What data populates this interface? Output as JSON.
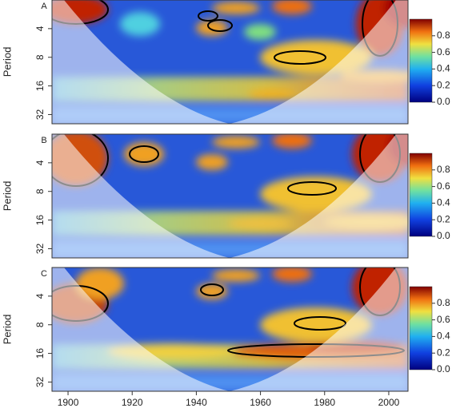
{
  "chart_data": [
    {
      "type": "heatmap",
      "label": "A",
      "y_label": "Period",
      "xlim": [
        1895,
        2006
      ],
      "ylim": [
        2,
        40
      ],
      "yticks": [
        4,
        8,
        16,
        32
      ],
      "log_y": true,
      "y_reversed": true,
      "colorbar": {
        "lim": [
          0,
          1
        ],
        "ticks": [
          {
            "value": 0,
            "label": "0.0"
          },
          {
            "value": 0.2,
            "label": "0.2"
          },
          {
            "value": 0.4,
            "label": "0.4"
          },
          {
            "value": 0.6,
            "label": "0.6"
          },
          {
            "value": 0.8,
            "label": "0.8"
          }
        ]
      }
    },
    {
      "type": "heatmap",
      "label": "B",
      "y_label": "Period",
      "xlim": [
        1895,
        2006
      ],
      "ylim": [
        2,
        40
      ],
      "yticks": [
        4,
        8,
        16,
        32
      ],
      "log_y": true,
      "y_reversed": true,
      "colorbar": {
        "lim": [
          0,
          1
        ],
        "ticks": [
          {
            "value": 0,
            "label": "0.0"
          },
          {
            "value": 0.2,
            "label": "0.2"
          },
          {
            "value": 0.4,
            "label": "0.4"
          },
          {
            "value": 0.6,
            "label": "0.6"
          },
          {
            "value": 0.8,
            "label": "0.8"
          }
        ]
      }
    },
    {
      "type": "heatmap",
      "label": "C",
      "y_label": "Period",
      "xlim": [
        1895,
        2006
      ],
      "ylim": [
        2,
        40
      ],
      "yticks": [
        4,
        8,
        16,
        32
      ],
      "log_y": true,
      "y_reversed": true,
      "xticks": [
        1900,
        1920,
        1940,
        1960,
        1980,
        2000
      ],
      "colorbar": {
        "lim": [
          0,
          1
        ],
        "ticks": [
          {
            "value": 0,
            "label": "0.0"
          },
          {
            "value": 0.2,
            "label": "0.2"
          },
          {
            "value": 0.4,
            "label": "0.4"
          },
          {
            "value": 0.6,
            "label": "0.6"
          },
          {
            "value": 0.8,
            "label": "0.8"
          }
        ]
      }
    }
  ]
}
